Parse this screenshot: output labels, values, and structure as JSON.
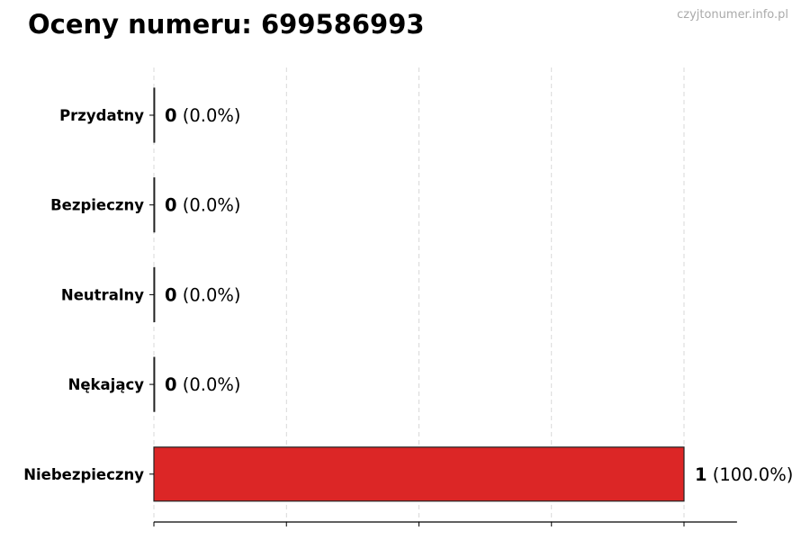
{
  "title": "Oceny numeru: 699586993",
  "watermark": "czyjtonumer.info.pl",
  "chart_data": {
    "type": "bar",
    "orientation": "horizontal",
    "title": "Oceny numeru: 699586993",
    "categories": [
      "Przydatny",
      "Bezpieczny",
      "Neutralny",
      "Nękający",
      "Niebezpieczny"
    ],
    "values": [
      0,
      0,
      0,
      0,
      1
    ],
    "labels": [
      {
        "count": "0",
        "pct": "(0.0%)"
      },
      {
        "count": "0",
        "pct": "(0.0%)"
      },
      {
        "count": "0",
        "pct": "(0.0%)"
      },
      {
        "count": "0",
        "pct": "(0.0%)"
      },
      {
        "count": "1",
        "pct": "(100.0%)"
      }
    ],
    "colors": [
      "#dc2626",
      "#dc2626",
      "#dc2626",
      "#dc2626",
      "#dc2626"
    ],
    "xlim": [
      0,
      1.1
    ],
    "xticks": [
      0,
      0.25,
      0.5,
      0.75,
      1
    ],
    "xtick_labels_shown": false,
    "grid": "vertical dashed",
    "xlabel": "",
    "ylabel": ""
  }
}
